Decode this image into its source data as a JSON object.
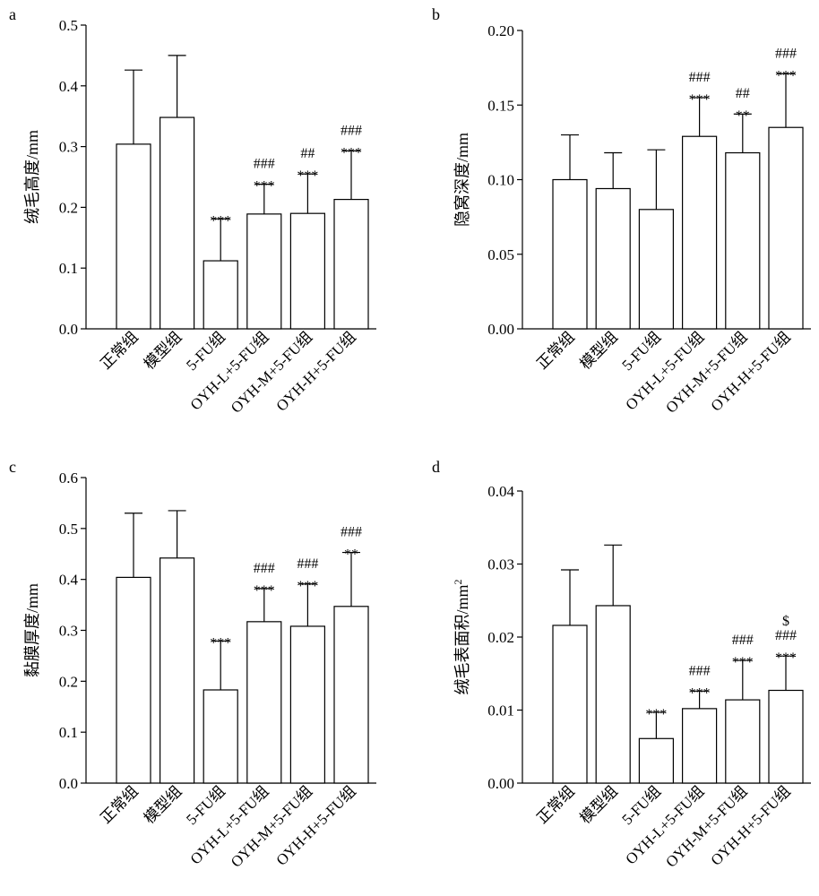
{
  "chart_data": [
    {
      "type": "bar",
      "panel": "a",
      "categories": [
        "正常组",
        "模型组",
        "5-FU组",
        "OYH-L+5-FU组",
        "OYH-M+5-FU组",
        "OYH-H+5-FU组"
      ],
      "values": [
        0.304,
        0.348,
        0.112,
        0.189,
        0.19,
        0.213
      ],
      "errors": [
        0.122,
        0.102,
        0.069,
        0.049,
        0.065,
        0.08
      ],
      "significance": [
        [],
        [],
        [
          "***"
        ],
        [
          "###",
          "***"
        ],
        [
          "##",
          "***"
        ],
        [
          "###",
          "***"
        ]
      ],
      "ylabel": "绒毛高度/mm",
      "ylim": [
        0,
        0.5
      ],
      "yticks": [
        "0.0",
        "0.1",
        "0.2",
        "0.3",
        "0.4",
        "0.5"
      ],
      "grid": false
    },
    {
      "type": "bar",
      "panel": "b",
      "categories": [
        "正常组",
        "模型组",
        "5-FU组",
        "OYH-L+5-FU组",
        "OYH-M+5-FU组",
        "OYH-H+5-FU组"
      ],
      "values": [
        0.1,
        0.094,
        0.08,
        0.129,
        0.118,
        0.135
      ],
      "errors": [
        0.03,
        0.024,
        0.04,
        0.026,
        0.026,
        0.036
      ],
      "significance": [
        [],
        [],
        [],
        [
          "###",
          "***"
        ],
        [
          "##",
          "**"
        ],
        [
          "###",
          "***"
        ]
      ],
      "ylabel": "隐窝深度/mm",
      "ylim": [
        0,
        0.2
      ],
      "yticks": [
        "0.00",
        "0.05",
        "0.10",
        "0.15",
        "0.20"
      ],
      "grid": false
    },
    {
      "type": "bar",
      "panel": "c",
      "categories": [
        "正常组",
        "模型组",
        "5-FU组",
        "OYH-L+5-FU组",
        "OYH-M+5-FU组",
        "OYH-H+5-FU组"
      ],
      "values": [
        0.404,
        0.442,
        0.183,
        0.317,
        0.308,
        0.347
      ],
      "errors": [
        0.126,
        0.093,
        0.096,
        0.065,
        0.083,
        0.106
      ],
      "significance": [
        [],
        [],
        [
          "***"
        ],
        [
          "###",
          "***"
        ],
        [
          "###",
          "***"
        ],
        [
          "###",
          "**"
        ]
      ],
      "ylabel": "黏膜厚度/mm",
      "ylim": [
        0,
        0.6
      ],
      "yticks": [
        "0.0",
        "0.1",
        "0.2",
        "0.3",
        "0.4",
        "0.5",
        "0.6"
      ],
      "grid": false
    },
    {
      "type": "bar",
      "panel": "d",
      "categories": [
        "正常组",
        "模型组",
        "5-FU组",
        "OYH-L+5-FU组",
        "OYH-M+5-FU组",
        "OYH-H+5-FU组"
      ],
      "values": [
        0.0216,
        0.0243,
        0.0061,
        0.0102,
        0.0114,
        0.0127
      ],
      "errors": [
        0.0076,
        0.0083,
        0.0036,
        0.0024,
        0.0054,
        0.0047
      ],
      "significance": [
        [],
        [],
        [
          "***"
        ],
        [
          "###",
          "***"
        ],
        [
          "###",
          "***"
        ],
        [
          "$",
          "###",
          "***"
        ]
      ],
      "ylabel": "绒毛表面积/mm",
      "ylabel_sup": "2",
      "ylim": [
        0,
        0.04
      ],
      "yticks": [
        "0.00",
        "0.01",
        "0.02",
        "0.03",
        "0.04"
      ],
      "grid": false
    }
  ]
}
